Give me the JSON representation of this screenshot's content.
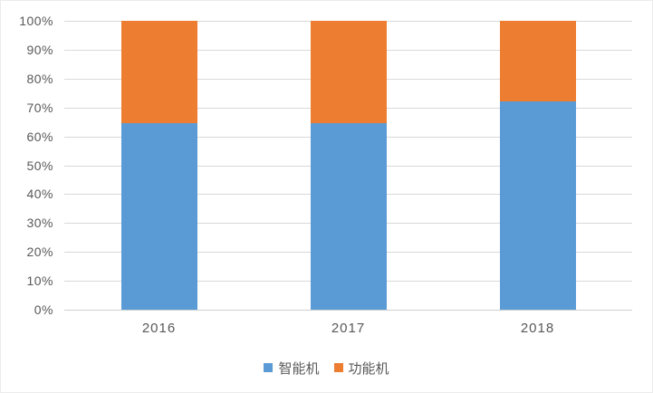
{
  "chart_data": {
    "type": "bar",
    "subtype": "stacked-100-percent",
    "title": "",
    "xlabel": "",
    "ylabel": "",
    "categories": [
      "2016",
      "2017",
      "2018"
    ],
    "series": [
      {
        "name": "智能机",
        "color": "#5B9BD5",
        "values": [
          64.5,
          64.5,
          72
        ]
      },
      {
        "name": "功能机",
        "color": "#ED7D31",
        "values": [
          35.5,
          35.5,
          28
        ]
      }
    ],
    "ylim": [
      0,
      100
    ],
    "y_ticks": [
      "0%",
      "10%",
      "20%",
      "30%",
      "40%",
      "50%",
      "60%",
      "70%",
      "80%",
      "90%",
      "100%"
    ],
    "grid": true,
    "gridline_color": "#d9d9d9",
    "legend_position": "bottom",
    "text_color": "#595959",
    "background_color": "#ffffff"
  }
}
